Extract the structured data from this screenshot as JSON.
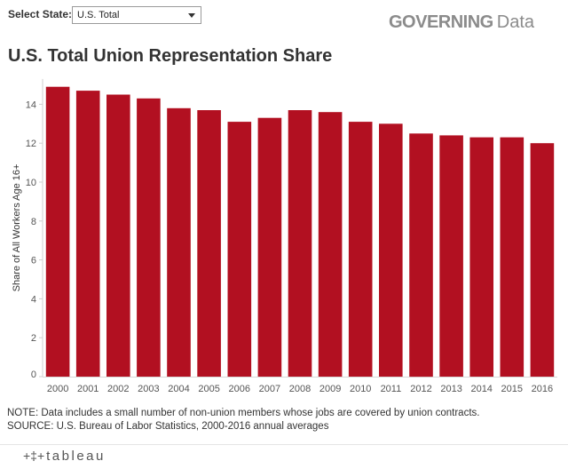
{
  "filter": {
    "label": "Select State:",
    "selected": "U.S. Total"
  },
  "brand": {
    "bold": "GOVERNING",
    "light": "Data"
  },
  "title": "U.S. Total Union Representation Share",
  "chart_data": {
    "type": "bar",
    "title": "U.S. Total Union Representation Share",
    "ylabel": "Share of All Workers Age 16+",
    "xlabel": "",
    "categories": [
      "2000",
      "2001",
      "2002",
      "2003",
      "2004",
      "2005",
      "2006",
      "2007",
      "2008",
      "2009",
      "2010",
      "2011",
      "2012",
      "2013",
      "2014",
      "2015",
      "2016"
    ],
    "values": [
      14.9,
      14.7,
      14.5,
      14.3,
      13.8,
      13.7,
      13.1,
      13.3,
      13.7,
      13.6,
      13.1,
      13.0,
      12.5,
      12.4,
      12.3,
      12.3,
      12.0
    ],
    "yticks": [
      "0",
      "2",
      "4",
      "6",
      "8",
      "10",
      "12",
      "14"
    ],
    "ylim": [
      0,
      15.3
    ],
    "grid": false,
    "bar_color": "#b21021"
  },
  "notes": {
    "line1": "NOTE: Data includes a small number of non-union members whose jobs are covered by union contracts.",
    "line2": "SOURCE: U.S. Bureau of Labor Statistics, 2000-2016 annual averages"
  },
  "footer": {
    "logo_text": "tableau"
  },
  "colors": {
    "bar": "#b21021",
    "brand": "#8b8b8b"
  }
}
